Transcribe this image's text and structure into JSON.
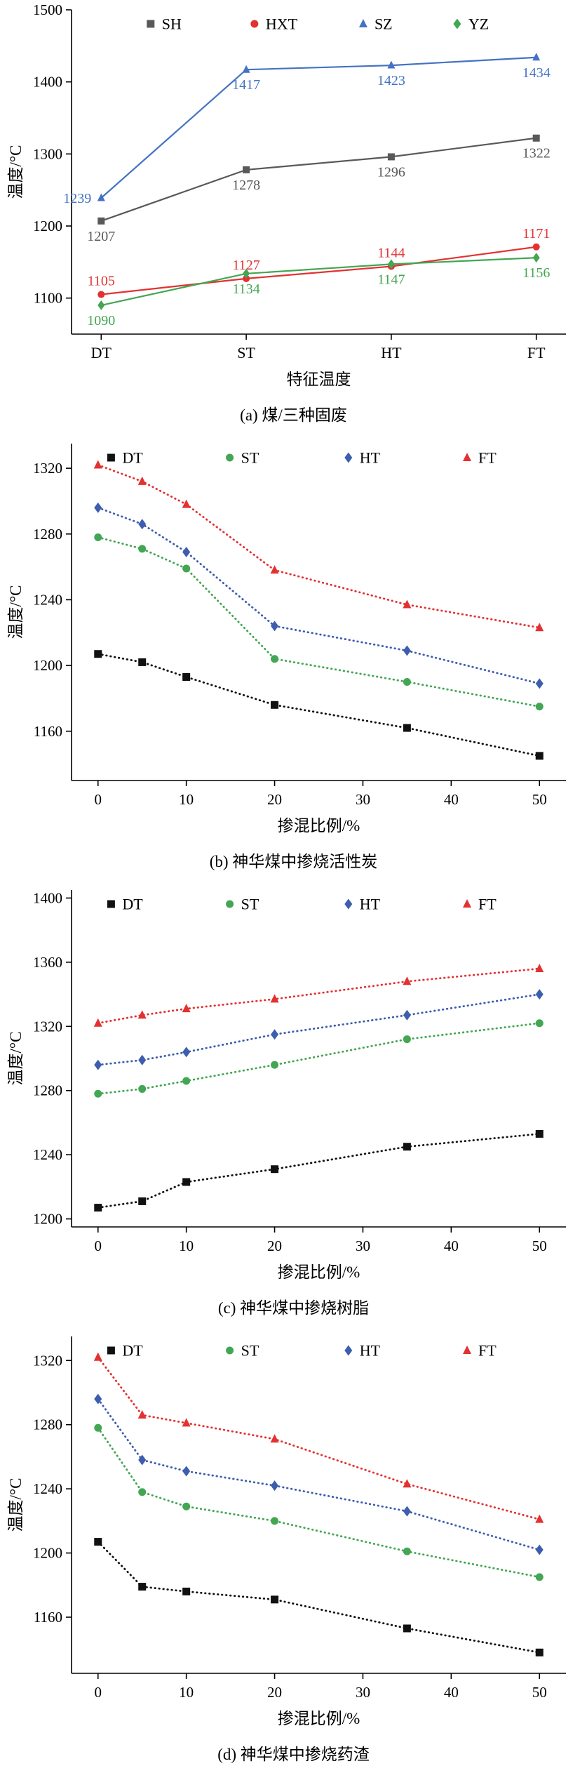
{
  "page": {
    "background": "#ffffff"
  },
  "chart_data": [
    {
      "id": "a",
      "type": "line",
      "caption": "(a) 煤/三种固废",
      "xlabel": "特征温度",
      "ylabel": "温度/°C",
      "categories": [
        "DT",
        "ST",
        "HT",
        "FT"
      ],
      "ylim": [
        1050,
        1500
      ],
      "yticks": [
        1100,
        1200,
        1300,
        1400,
        1500
      ],
      "dotted": false,
      "show_point_labels": true,
      "legend_position": "top-inside",
      "legend_fracs": [
        0.16,
        0.37,
        0.59,
        0.78
      ],
      "series": [
        {
          "name": "SH",
          "color": "#595959",
          "marker": "square",
          "values": [
            1207,
            1278,
            1296,
            1322
          ],
          "label_placement": [
            "below",
            "below",
            "below",
            "below"
          ]
        },
        {
          "name": "HXT",
          "color": "#e33131",
          "marker": "circle",
          "values": [
            1105,
            1127,
            1144,
            1171
          ],
          "label_placement": [
            "above",
            "above",
            "above",
            "above"
          ]
        },
        {
          "name": "SZ",
          "color": "#4472c4",
          "marker": "triangle",
          "values": [
            1239,
            1417,
            1423,
            1434
          ],
          "label_placement": [
            "left",
            "below",
            "below",
            "below"
          ]
        },
        {
          "name": "YZ",
          "color": "#43a653",
          "marker": "diamond",
          "values": [
            1090,
            1134,
            1147,
            1156
          ],
          "label_placement": [
            "below",
            "below",
            "below",
            "below"
          ]
        }
      ]
    },
    {
      "id": "b",
      "type": "line",
      "caption": "(b) 神华煤中掺烧活性炭",
      "xlabel": "掺混比例/%",
      "ylabel": "温度/°C",
      "x": [
        0,
        5,
        10,
        20,
        35,
        50
      ],
      "xlim": [
        -3,
        53
      ],
      "xticks": [
        0,
        10,
        20,
        30,
        40,
        50
      ],
      "ylim": [
        1130,
        1335
      ],
      "yticks": [
        1160,
        1200,
        1240,
        1280,
        1320
      ],
      "dotted": true,
      "show_point_labels": false,
      "legend_position": "top-inside",
      "legend_fracs": [
        0.08,
        0.32,
        0.56,
        0.8
      ],
      "series": [
        {
          "name": "DT",
          "color": "#111111",
          "marker": "square",
          "values": [
            1207,
            1202,
            1193,
            1176,
            1162,
            1145
          ]
        },
        {
          "name": "ST",
          "color": "#43a653",
          "marker": "circle",
          "values": [
            1278,
            1271,
            1259,
            1204,
            1190,
            1175
          ]
        },
        {
          "name": "HT",
          "color": "#3d5dae",
          "marker": "diamond",
          "values": [
            1296,
            1286,
            1269,
            1224,
            1209,
            1189
          ]
        },
        {
          "name": "FT",
          "color": "#e33131",
          "marker": "triangle",
          "values": [
            1322,
            1312,
            1298,
            1258,
            1237,
            1223
          ]
        }
      ]
    },
    {
      "id": "c",
      "type": "line",
      "caption": "(c) 神华煤中掺烧树脂",
      "xlabel": "掺混比例/%",
      "ylabel": "温度/°C",
      "x": [
        0,
        5,
        10,
        20,
        35,
        50
      ],
      "xlim": [
        -3,
        53
      ],
      "xticks": [
        0,
        10,
        20,
        30,
        40,
        50
      ],
      "ylim": [
        1195,
        1405
      ],
      "yticks": [
        1200,
        1240,
        1280,
        1320,
        1360,
        1400
      ],
      "dotted": true,
      "show_point_labels": false,
      "legend_position": "top-inside",
      "legend_fracs": [
        0.08,
        0.32,
        0.56,
        0.8
      ],
      "series": [
        {
          "name": "DT",
          "color": "#111111",
          "marker": "square",
          "values": [
            1207,
            1211,
            1223,
            1231,
            1245,
            1253
          ]
        },
        {
          "name": "ST",
          "color": "#43a653",
          "marker": "circle",
          "values": [
            1278,
            1281,
            1286,
            1296,
            1312,
            1322
          ]
        },
        {
          "name": "HT",
          "color": "#3d5dae",
          "marker": "diamond",
          "values": [
            1296,
            1299,
            1304,
            1315,
            1327,
            1340
          ]
        },
        {
          "name": "FT",
          "color": "#e33131",
          "marker": "triangle",
          "values": [
            1322,
            1327,
            1331,
            1337,
            1348,
            1356
          ]
        }
      ]
    },
    {
      "id": "d",
      "type": "line",
      "caption": "(d) 神华煤中掺烧药渣",
      "xlabel": "掺混比例/%",
      "ylabel": "温度/°C",
      "x": [
        0,
        5,
        10,
        20,
        35,
        50
      ],
      "xlim": [
        -3,
        53
      ],
      "xticks": [
        0,
        10,
        20,
        30,
        40,
        50
      ],
      "ylim": [
        1125,
        1335
      ],
      "yticks": [
        1160,
        1200,
        1240,
        1280,
        1320
      ],
      "dotted": true,
      "show_point_labels": false,
      "legend_position": "top-inside",
      "legend_fracs": [
        0.08,
        0.32,
        0.56,
        0.8
      ],
      "series": [
        {
          "name": "DT",
          "color": "#111111",
          "marker": "square",
          "values": [
            1207,
            1179,
            1176,
            1171,
            1153,
            1138
          ]
        },
        {
          "name": "ST",
          "color": "#43a653",
          "marker": "circle",
          "values": [
            1278,
            1238,
            1229,
            1220,
            1201,
            1185
          ]
        },
        {
          "name": "HT",
          "color": "#3d5dae",
          "marker": "diamond",
          "values": [
            1296,
            1258,
            1251,
            1242,
            1226,
            1202
          ]
        },
        {
          "name": "FT",
          "color": "#e33131",
          "marker": "triangle",
          "values": [
            1322,
            1286,
            1281,
            1271,
            1243,
            1221
          ]
        }
      ]
    }
  ]
}
